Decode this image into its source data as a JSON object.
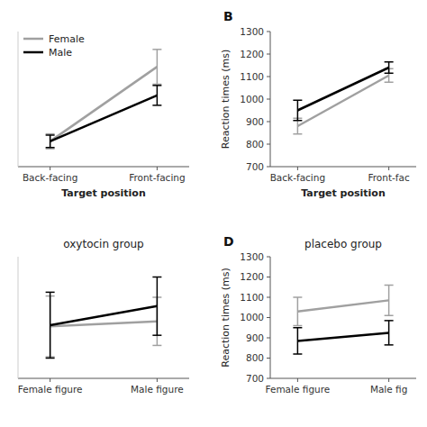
{
  "chart_data": [
    {
      "type": "line",
      "xlabel": "Target position",
      "categories": [
        "Back-facing",
        "Front-facing"
      ],
      "series": [
        {
          "name": "Female",
          "color": "#a0a0a0",
          "values": [
            870,
            1170
          ],
          "errors": [
            30,
            70
          ]
        },
        {
          "name": "Male",
          "color": "#000000",
          "values": [
            870,
            1055
          ],
          "errors": [
            25,
            40
          ]
        }
      ],
      "ylim": [
        768,
        1312
      ],
      "legend": "upper left",
      "tick_labels": "x"
    },
    {
      "type": "line",
      "annotations": [
        "B"
      ],
      "xlabel": "Target position",
      "ylabel": "Reaction times (ms)",
      "categories": [
        "Back-facing",
        "Front-fac"
      ],
      "series": [
        {
          "color": "#a0a0a0",
          "values": [
            880,
            1105
          ],
          "errors": [
            35,
            30
          ]
        },
        {
          "color": "#000000",
          "values": [
            950,
            1140
          ],
          "errors": [
            45,
            25
          ]
        }
      ],
      "ylim": [
        700,
        1300
      ],
      "yticks": [
        700,
        800,
        900,
        1000,
        1100,
        1200,
        1300
      ]
    },
    {
      "type": "line",
      "title": "oxytocin group",
      "categories": [
        "Female figure",
        "Male figure"
      ],
      "series": [
        {
          "color": "#a0a0a0",
          "values": [
            1075,
            1095
          ],
          "errors": [
            120,
            95
          ]
        },
        {
          "color": "#000000",
          "values": [
            1080,
            1155
          ],
          "errors": [
            130,
            115
          ]
        }
      ],
      "ylim": [
        870,
        1350
      ],
      "tick_labels": "x"
    },
    {
      "type": "line",
      "title": "placebo group",
      "annotations": [
        "D"
      ],
      "ylabel": "Reaction times (ms)",
      "categories": [
        "Female figure",
        "Male fig"
      ],
      "series": [
        {
          "color": "#a0a0a0",
          "values": [
            1030,
            1085
          ],
          "errors": [
            70,
            75
          ]
        },
        {
          "color": "#000000",
          "values": [
            885,
            925
          ],
          "errors": [
            65,
            60
          ]
        }
      ],
      "ylim": [
        700,
        1300
      ],
      "yticks": [
        700,
        800,
        900,
        1000,
        1100,
        1200,
        1300
      ]
    }
  ]
}
